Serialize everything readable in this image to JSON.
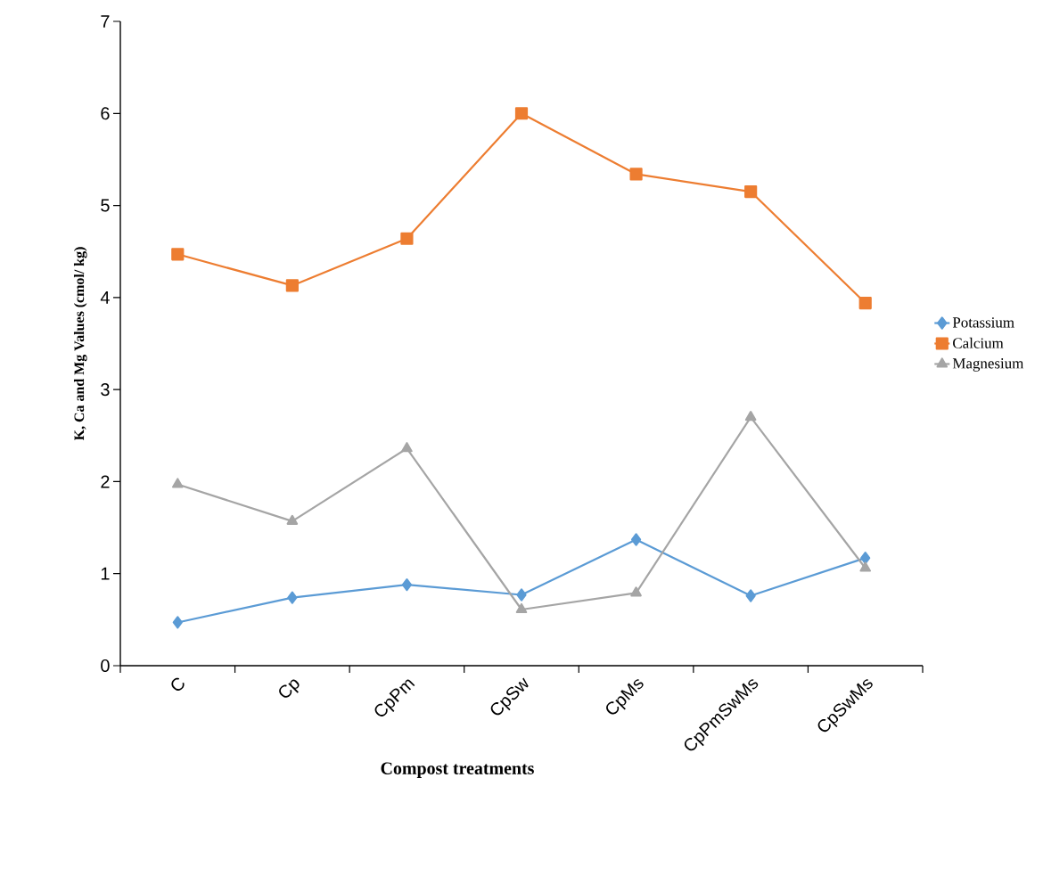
{
  "chart_data": {
    "type": "line",
    "xlabel": "Compost treatments",
    "ylabel": "K, Ca and Mg Values (cmol/ kg)",
    "categories": [
      "C",
      "Cp",
      "CpPm",
      "CpSw",
      "CpMs",
      "CpPmSwMs",
      "CpSwMs"
    ],
    "series": [
      {
        "name": "Potassium",
        "color": "#5b9bd5",
        "marker": "diamond",
        "values": [
          0.47,
          0.74,
          0.88,
          0.77,
          1.37,
          0.76,
          1.17
        ]
      },
      {
        "name": "Calcium",
        "color": "#ed7d31",
        "marker": "square",
        "values": [
          4.47,
          4.13,
          4.64,
          6.0,
          5.34,
          5.15,
          3.94
        ]
      },
      {
        "name": "Magnesium",
        "color": "#a5a5a5",
        "marker": "triangle",
        "values": [
          1.97,
          1.57,
          2.36,
          0.61,
          0.79,
          2.7,
          1.06
        ]
      }
    ],
    "ylim": [
      0,
      7
    ],
    "yticks": [
      0,
      1,
      2,
      3,
      4,
      5,
      6,
      7
    ],
    "grid": false,
    "legend": "right",
    "line_style": "solid"
  }
}
